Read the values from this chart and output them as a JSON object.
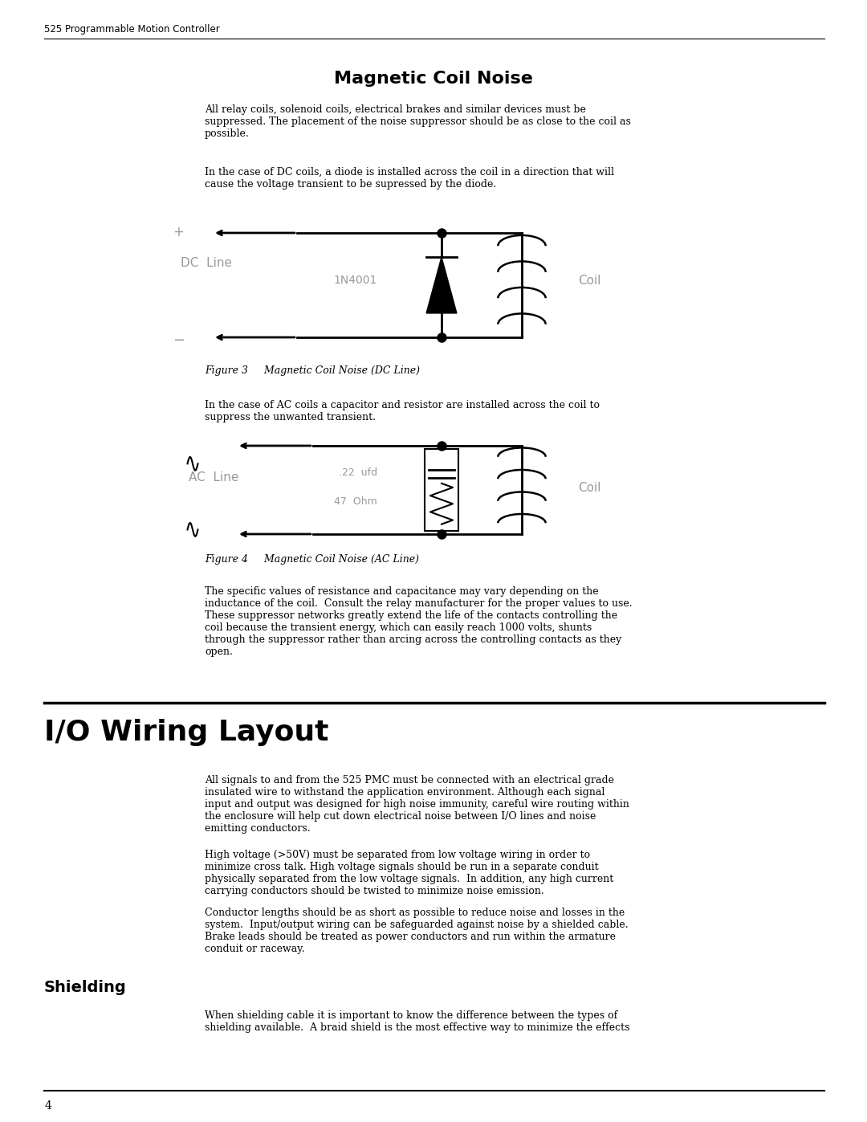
{
  "page_header": "525 Programmable Motion Controller",
  "section1_title": "Magnetic Coil Noise",
  "section1_body1": "All relay coils, solenoid coils, electrical brakes and similar devices must be\nsuppressed. The placement of the noise suppressor should be as close to the coil as\npossible.",
  "section1_body2": "In the case of DC coils, a diode is installed across the coil in a direction that will\ncause the voltage transient to be supressed by the diode.",
  "figure3_caption": "Figure 3     Magnetic Coil Noise (DC Line)",
  "section1_body3": "In the case of AC coils a capacitor and resistor are installed across the coil to\nsuppress the unwanted transient.",
  "figure4_caption": "Figure 4     Magnetic Coil Noise (AC Line)",
  "section1_body4": "The specific values of resistance and capacitance may vary depending on the\ninductance of the coil.  Consult the relay manufacturer for the proper values to use.\nThese suppressor networks greatly extend the life of the contacts controlling the\ncoil because the transient energy, which can easily reach 1000 volts, shunts\nthrough the suppressor rather than arcing across the controlling contacts as they\nopen.",
  "section2_title": "I/O Wiring Layout",
  "section2_body1": "All signals to and from the 525 PMC must be connected with an electrical grade\ninsulated wire to withstand the application environment. Although each signal\ninput and output was designed for high noise immunity, careful wire routing within\nthe enclosure will help cut down electrical noise between I/O lines and noise\nemitting conductors.",
  "section2_body2": "High voltage (>50V) must be separated from low voltage wiring in order to\nminimize cross talk. High voltage signals should be run in a separate conduit\nphysically separated from the low voltage signals.  In addition, any high current\ncarrying conductors should be twisted to minimize noise emission.",
  "section2_body3": "Conductor lengths should be as short as possible to reduce noise and losses in the\nsystem.  Input/output wiring can be safeguarded against noise by a shielded cable.\nBrake leads should be treated as power conductors and run within the armature\nconduit or raceway.",
  "section3_title": "Shielding",
  "section3_body1": "When shielding cable it is important to know the difference between the types of\nshielding available.  A braid shield is the most effective way to minimize the effects",
  "page_number": "4",
  "bg_color": "#ffffff",
  "text_color": "#000000",
  "gray_color": "#999999"
}
